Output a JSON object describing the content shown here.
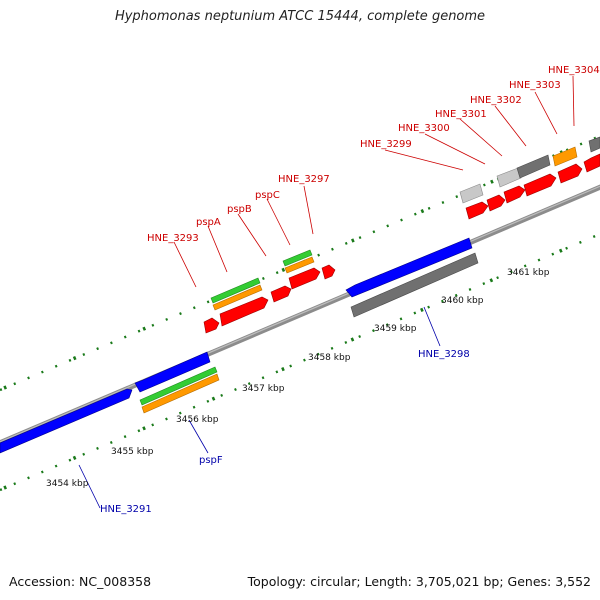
{
  "title": "Hyphomonas neptunium ATCC 15444, complete genome",
  "footer": {
    "accession": "Accession: NC_008358",
    "summary": "Topology: circular; Length: 3,705,021 bp; Genes: 3,552"
  },
  "colors": {
    "backbone": "#8c8c8c",
    "ticks": "#1a7a1a",
    "forward_gene": "#ff0000",
    "reverse_gene": "#0000ff",
    "feature_green": "#33cc33",
    "feature_orange": "#ff9900",
    "feature_gray": "#707070",
    "feature_lightgray": "#c8c8c8",
    "forward_label": "#cc0000",
    "reverse_label": "#0000aa"
  },
  "scale_labels": [
    "3454 kbp",
    "3455 kbp",
    "3456 kbp",
    "3457 kbp",
    "3458 kbp",
    "3459 kbp",
    "3460 kbp",
    "3461 kbp"
  ],
  "forward_labels": [
    "HNE_3293",
    "pspA",
    "pspB",
    "pspC",
    "HNE_3297",
    "HNE_3299",
    "HNE_3300",
    "HNE_3301",
    "HNE_3302",
    "HNE_3303",
    "HNE_3304"
  ],
  "reverse_labels": [
    "HNE_3291",
    "pspF",
    "HNE_3298"
  ]
}
